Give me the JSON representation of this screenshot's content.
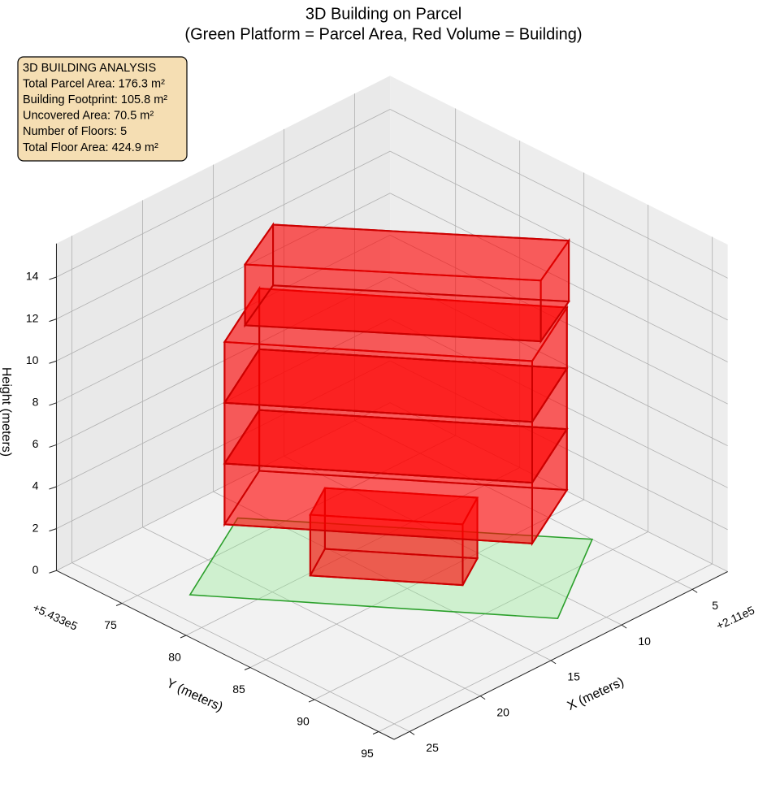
{
  "chart_data": {
    "type": "box3d",
    "title": "3D Building on Parcel",
    "subtitle": "(Green Platform = Parcel Area, Red Volume = Building)",
    "xlabel": "X (meters)",
    "ylabel": "Y (meters)",
    "zlabel": "Height (meters)",
    "x_offset": "+2.11e5",
    "y_offset": "+5.433e5",
    "xlim": [
      2.5,
      26.1
    ],
    "ylim": [
      69.9,
      96.2
    ],
    "zlim": [
      0,
      15.6
    ],
    "xticks": [
      5,
      10,
      15,
      20,
      25
    ],
    "yticks": [
      75,
      80,
      85,
      90,
      95
    ],
    "zticks": [
      0,
      2,
      4,
      6,
      8,
      10,
      12,
      14
    ],
    "grid": true,
    "info": [
      "3D BUILDING ANALYSIS",
      "Total Parcel Area: 176.3 m²",
      "Building Footprint: 105.8 m²",
      "Uncovered Area: 70.5 m²",
      "Number of Floors: 5",
      "Total Floor Area: 424.9 m²"
    ],
    "parcel": {
      "color": "#90ee90",
      "edge_color": "#2ca02c",
      "x": [
        11.8,
        5.0,
        16.0,
        23.1
      ],
      "y": [
        93.2,
        88.4,
        72.9,
        77.0
      ]
    },
    "building": {
      "color": "#ff0000",
      "edge_color": "#cc0000",
      "floors": [
        {
          "x": [
            17.5,
            12.8,
            10.4,
            15.1
          ],
          "y": [
            80.2,
            86.9,
            85.4,
            78.7
          ],
          "z": [
            0,
            2.9
          ]
        },
        {
          "x": [
            21.2,
            11.7,
            6.7,
            16.2
          ],
          "y": [
            77.6,
            91.1,
            88.3,
            74.8
          ],
          "z": [
            2.9,
            5.8
          ]
        },
        {
          "x": [
            21.2,
            11.7,
            6.7,
            16.2
          ],
          "y": [
            77.6,
            91.1,
            88.3,
            74.8
          ],
          "z": [
            5.8,
            8.7
          ]
        },
        {
          "x": [
            21.2,
            11.7,
            6.7,
            16.2
          ],
          "y": [
            77.6,
            91.1,
            88.3,
            74.8
          ],
          "z": [
            8.7,
            11.6
          ]
        },
        {
          "x": [
            19.3,
            10.0,
            6.2,
            15.5
          ],
          "y": [
            77.1,
            89.9,
            87.9,
            75.1
          ],
          "z": [
            11.6,
            14.5
          ]
        }
      ]
    }
  }
}
